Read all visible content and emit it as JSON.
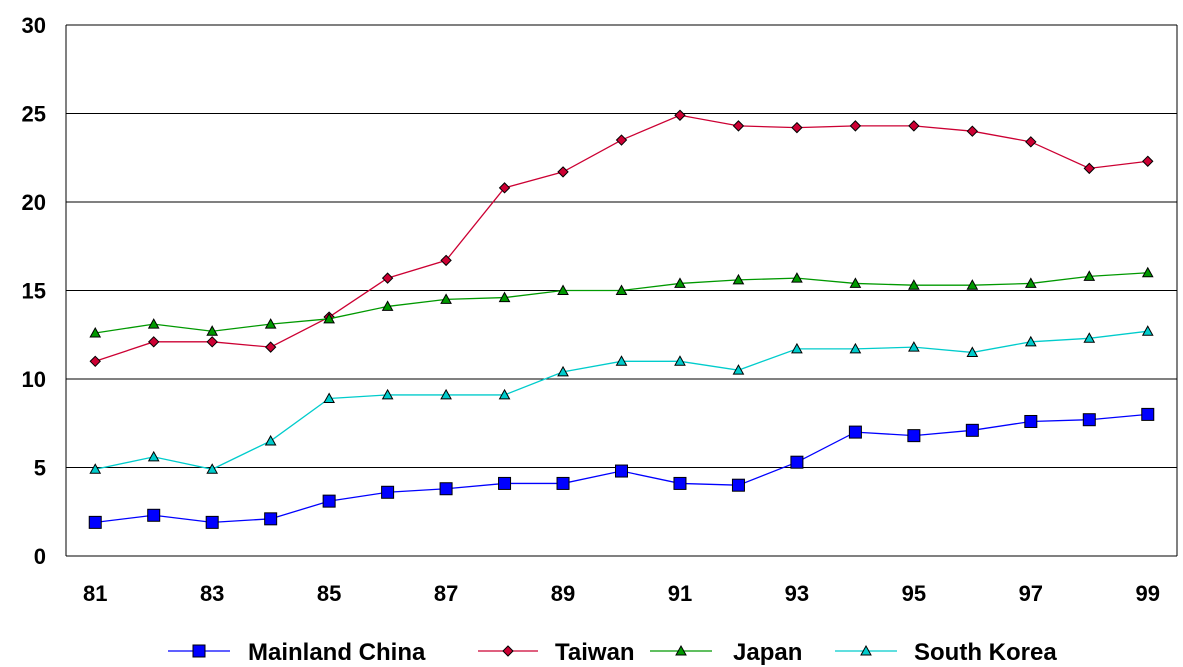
{
  "chart_data": {
    "type": "line",
    "title": "",
    "xlabel": "",
    "ylabel": "",
    "x": [
      81,
      82,
      83,
      84,
      85,
      86,
      87,
      88,
      89,
      90,
      91,
      92,
      93,
      94,
      95,
      96,
      97,
      98,
      99
    ],
    "x_tick_labels": [
      "81",
      "83",
      "85",
      "87",
      "89",
      "91",
      "93",
      "95",
      "97",
      "99"
    ],
    "y_tick_labels": [
      "0",
      "5",
      "10",
      "15",
      "20",
      "25",
      "30"
    ],
    "ylim": [
      0,
      30
    ],
    "grid": "horizontal",
    "legend_position": "bottom",
    "series": [
      {
        "name": "Mainland China",
        "color": "#0000ff",
        "marker": "square",
        "values": [
          1.9,
          2.3,
          1.9,
          2.1,
          3.1,
          3.6,
          3.8,
          4.1,
          4.1,
          4.8,
          4.1,
          4.0,
          5.3,
          7.0,
          6.8,
          7.1,
          7.6,
          7.7,
          8.0
        ]
      },
      {
        "name": "Taiwan",
        "color": "#cc0033",
        "marker": "diamond",
        "values": [
          11.0,
          12.1,
          12.1,
          11.8,
          13.5,
          15.7,
          16.7,
          20.8,
          21.7,
          23.5,
          24.9,
          24.3,
          24.2,
          24.3,
          24.3,
          24.0,
          23.4,
          21.9,
          22.3
        ]
      },
      {
        "name": "Japan",
        "color": "#009900",
        "marker": "triangle",
        "values": [
          12.6,
          13.1,
          12.7,
          13.1,
          13.4,
          14.1,
          14.5,
          14.6,
          15.0,
          15.0,
          15.4,
          15.6,
          15.7,
          15.4,
          15.3,
          15.3,
          15.4,
          15.8,
          16.0
        ]
      },
      {
        "name": "South Korea",
        "color": "#00cccc",
        "marker": "triangle",
        "values": [
          4.9,
          5.6,
          4.9,
          6.5,
          8.9,
          9.1,
          9.1,
          9.1,
          10.4,
          11.0,
          11.0,
          10.5,
          11.7,
          11.7,
          11.8,
          11.5,
          12.1,
          12.3,
          12.7
        ]
      }
    ]
  }
}
